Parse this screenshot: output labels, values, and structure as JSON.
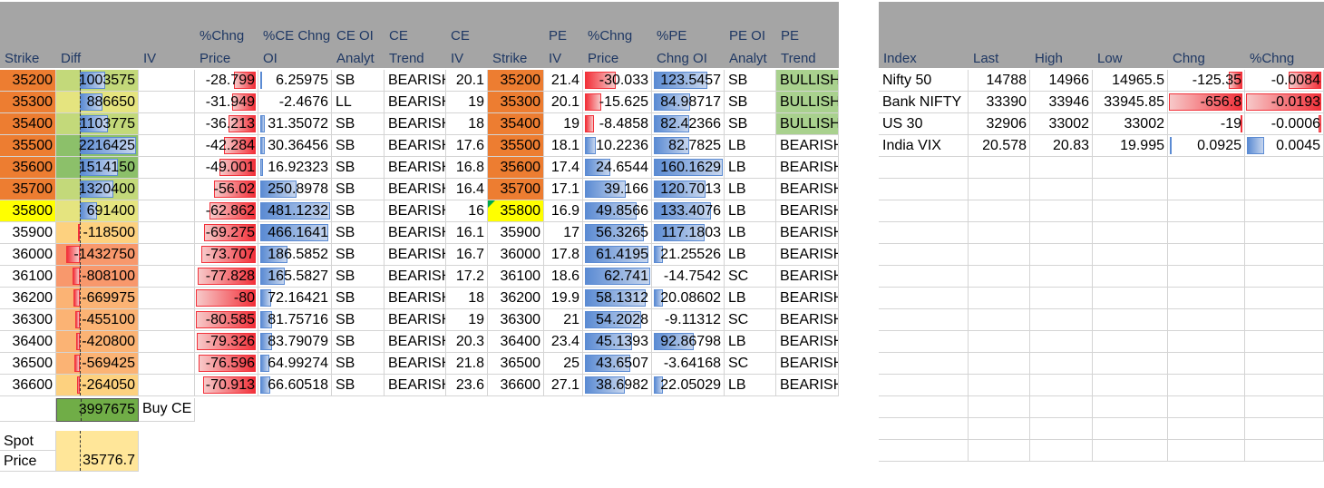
{
  "option_chain": {
    "headers": [
      {
        "l1": "",
        "l2": "Strike"
      },
      {
        "l1": "",
        "l2": "Diff"
      },
      {
        "l1": "",
        "l2": "IV"
      },
      {
        "l1": "%Chng",
        "l2": "Price"
      },
      {
        "l1": "%CE Chng",
        "l2": "OI"
      },
      {
        "l1": "CE OI",
        "l2": "Analyt"
      },
      {
        "l1": "CE",
        "l2": "Trend"
      },
      {
        "l1": "CE",
        "l2": "IV"
      },
      {
        "l1": "",
        "l2": "Strike"
      },
      {
        "l1": "PE",
        "l2": "IV"
      },
      {
        "l1": "%Chng",
        "l2": "Price"
      },
      {
        "l1": "%PE",
        "l2": "Chng OI"
      },
      {
        "l1": "PE OI",
        "l2": "Analyt"
      },
      {
        "l1": "PE",
        "l2": "Trend"
      }
    ],
    "rows": [
      {
        "strike": "35200",
        "diff": "1003575",
        "iv": "",
        "ce_chng_price": "-28.799",
        "ce_chng_oi": "6.25975",
        "ce_oi_analyt": "SB",
        "ce_trend": "BEARISH",
        "ce_iv": "20.1",
        "pe_strike": "35200",
        "pe_iv": "21.4",
        "pe_chng_price": "-30.033",
        "pe_chng_oi": "123.5457",
        "pe_oi_analyt": "SB",
        "pe_trend": "BULLISH"
      },
      {
        "strike": "35300",
        "diff": "886650",
        "iv": "",
        "ce_chng_price": "-31.949",
        "ce_chng_oi": "-2.4676",
        "ce_oi_analyt": "LL",
        "ce_trend": "BEARISH",
        "ce_iv": "19",
        "pe_strike": "35300",
        "pe_iv": "20.1",
        "pe_chng_price": "-15.625",
        "pe_chng_oi": "84.98717",
        "pe_oi_analyt": "SB",
        "pe_trend": "BULLISH"
      },
      {
        "strike": "35400",
        "diff": "1103775",
        "iv": "",
        "ce_chng_price": "-36.213",
        "ce_chng_oi": "31.35072",
        "ce_oi_analyt": "SB",
        "ce_trend": "BEARISH",
        "ce_iv": "18",
        "pe_strike": "35400",
        "pe_iv": "19",
        "pe_chng_price": "-8.4858",
        "pe_chng_oi": "82.42366",
        "pe_oi_analyt": "SB",
        "pe_trend": "BULLISH"
      },
      {
        "strike": "35500",
        "diff": "2216425",
        "iv": "",
        "ce_chng_price": "-42.284",
        "ce_chng_oi": "30.36456",
        "ce_oi_analyt": "SB",
        "ce_trend": "BEARISH",
        "ce_iv": "17.6",
        "pe_strike": "35500",
        "pe_iv": "18.1",
        "pe_chng_price": "10.2236",
        "pe_chng_oi": "82.7825",
        "pe_oi_analyt": "LB",
        "pe_trend": "BEARISH"
      },
      {
        "strike": "35600",
        "diff": "1514150",
        "iv": "",
        "ce_chng_price": "-49.001",
        "ce_chng_oi": "16.92323",
        "ce_oi_analyt": "SB",
        "ce_trend": "BEARISH",
        "ce_iv": "16.8",
        "pe_strike": "35600",
        "pe_iv": "17.4",
        "pe_chng_price": "24.6544",
        "pe_chng_oi": "160.1629",
        "pe_oi_analyt": "LB",
        "pe_trend": "BEARISH"
      },
      {
        "strike": "35700",
        "diff": "1320400",
        "iv": "",
        "ce_chng_price": "-56.02",
        "ce_chng_oi": "250.8978",
        "ce_oi_analyt": "SB",
        "ce_trend": "BEARISH",
        "ce_iv": "16.4",
        "pe_strike": "35700",
        "pe_iv": "17.1",
        "pe_chng_price": "39.166",
        "pe_chng_oi": "120.7013",
        "pe_oi_analyt": "LB",
        "pe_trend": "BEARISH"
      },
      {
        "strike": "35800",
        "diff": "691400",
        "iv": "",
        "ce_chng_price": "-62.862",
        "ce_chng_oi": "481.1232",
        "ce_oi_analyt": "SB",
        "ce_trend": "BEARISH",
        "ce_iv": "16",
        "pe_strike": "35800",
        "pe_iv": "16.9",
        "pe_chng_price": "49.8566",
        "pe_chng_oi": "133.4076",
        "pe_oi_analyt": "LB",
        "pe_trend": "BEARISH"
      },
      {
        "strike": "35900",
        "diff": "-118500",
        "iv": "",
        "ce_chng_price": "-69.275",
        "ce_chng_oi": "466.1641",
        "ce_oi_analyt": "SB",
        "ce_trend": "BEARISH",
        "ce_iv": "16.1",
        "pe_strike": "35900",
        "pe_iv": "17",
        "pe_chng_price": "56.3265",
        "pe_chng_oi": "117.1803",
        "pe_oi_analyt": "LB",
        "pe_trend": "BEARISH"
      },
      {
        "strike": "36000",
        "diff": "-1432750",
        "iv": "",
        "ce_chng_price": "-73.707",
        "ce_chng_oi": "186.5852",
        "ce_oi_analyt": "SB",
        "ce_trend": "BEARISH",
        "ce_iv": "16.7",
        "pe_strike": "36000",
        "pe_iv": "17.8",
        "pe_chng_price": "61.4195",
        "pe_chng_oi": "21.25526",
        "pe_oi_analyt": "LB",
        "pe_trend": "BEARISH"
      },
      {
        "strike": "36100",
        "diff": "-808100",
        "iv": "",
        "ce_chng_price": "-77.828",
        "ce_chng_oi": "165.5827",
        "ce_oi_analyt": "SB",
        "ce_trend": "BEARISH",
        "ce_iv": "17.2",
        "pe_strike": "36100",
        "pe_iv": "18.6",
        "pe_chng_price": "62.741",
        "pe_chng_oi": "-14.7542",
        "pe_oi_analyt": "SC",
        "pe_trend": "BEARISH"
      },
      {
        "strike": "36200",
        "diff": "-669975",
        "iv": "",
        "ce_chng_price": "-80",
        "ce_chng_oi": "72.16421",
        "ce_oi_analyt": "SB",
        "ce_trend": "BEARISH",
        "ce_iv": "18",
        "pe_strike": "36200",
        "pe_iv": "19.9",
        "pe_chng_price": "58.1312",
        "pe_chng_oi": "20.08602",
        "pe_oi_analyt": "LB",
        "pe_trend": "BEARISH"
      },
      {
        "strike": "36300",
        "diff": "-455100",
        "iv": "",
        "ce_chng_price": "-80.585",
        "ce_chng_oi": "81.75716",
        "ce_oi_analyt": "SB",
        "ce_trend": "BEARISH",
        "ce_iv": "19",
        "pe_strike": "36300",
        "pe_iv": "21",
        "pe_chng_price": "54.2028",
        "pe_chng_oi": "-9.11312",
        "pe_oi_analyt": "SC",
        "pe_trend": "BEARISH"
      },
      {
        "strike": "36400",
        "diff": "-420800",
        "iv": "",
        "ce_chng_price": "-79.326",
        "ce_chng_oi": "83.79079",
        "ce_oi_analyt": "SB",
        "ce_trend": "BEARISH",
        "ce_iv": "20.3",
        "pe_strike": "36400",
        "pe_iv": "23.4",
        "pe_chng_price": "45.1393",
        "pe_chng_oi": "92.86798",
        "pe_oi_analyt": "LB",
        "pe_trend": "BEARISH"
      },
      {
        "strike": "36500",
        "diff": "-569425",
        "iv": "",
        "ce_chng_price": "-76.596",
        "ce_chng_oi": "64.99274",
        "ce_oi_analyt": "SB",
        "ce_trend": "BEARISH",
        "ce_iv": "21.8",
        "pe_strike": "36500",
        "pe_iv": "25",
        "pe_chng_price": "43.6507",
        "pe_chng_oi": "-3.64168",
        "pe_oi_analyt": "SC",
        "pe_trend": "BEARISH"
      },
      {
        "strike": "36600",
        "diff": "-264050",
        "iv": "",
        "ce_chng_price": "-70.913",
        "ce_chng_oi": "66.60518",
        "ce_oi_analyt": "SB",
        "ce_trend": "BEARISH",
        "ce_iv": "23.6",
        "pe_strike": "36600",
        "pe_iv": "27.1",
        "pe_chng_price": "38.6982",
        "pe_chng_oi": "22.05029",
        "pe_oi_analyt": "LB",
        "pe_trend": "BEARISH"
      }
    ],
    "total_diff": "3997675",
    "signal": "Buy CE",
    "spot_label_1": "Spot",
    "spot_label_2": "Price",
    "spot_price": "35776.7"
  },
  "index_table": {
    "headers": [
      "Index",
      "Last",
      "High",
      "Low",
      "Chng",
      "%Chng"
    ],
    "rows": [
      {
        "name": "Nifty 50",
        "last": "14788",
        "high": "14966",
        "low": "14965.5",
        "chng": "-125.35",
        "pchng": "-0.0084"
      },
      {
        "name": "Bank NIFTY",
        "last": "33390",
        "high": "33946",
        "low": "33945.85",
        "chng": "-656.8",
        "pchng": "-0.0193"
      },
      {
        "name": "US 30",
        "last": "32906",
        "high": "33002",
        "low": "33002",
        "chng": "-19",
        "pchng": "-0.0006"
      },
      {
        "name": "India VIX",
        "last": "20.578",
        "high": "20.83",
        "low": "19.995",
        "chng": "0.0925",
        "pchng": "0.0045"
      }
    ]
  },
  "colors": {
    "header_bg": "#a5a5a5",
    "header_text": "#1f3864",
    "strike_itm": "#ed7d31",
    "strike_atm": "#ffff00",
    "bullish_bg": "#a9d18e",
    "total_bg": "#70ad47",
    "spot_bg": "#ffe699",
    "bar_positive": "#5b8bd3",
    "bar_negative": "#f2313a"
  }
}
